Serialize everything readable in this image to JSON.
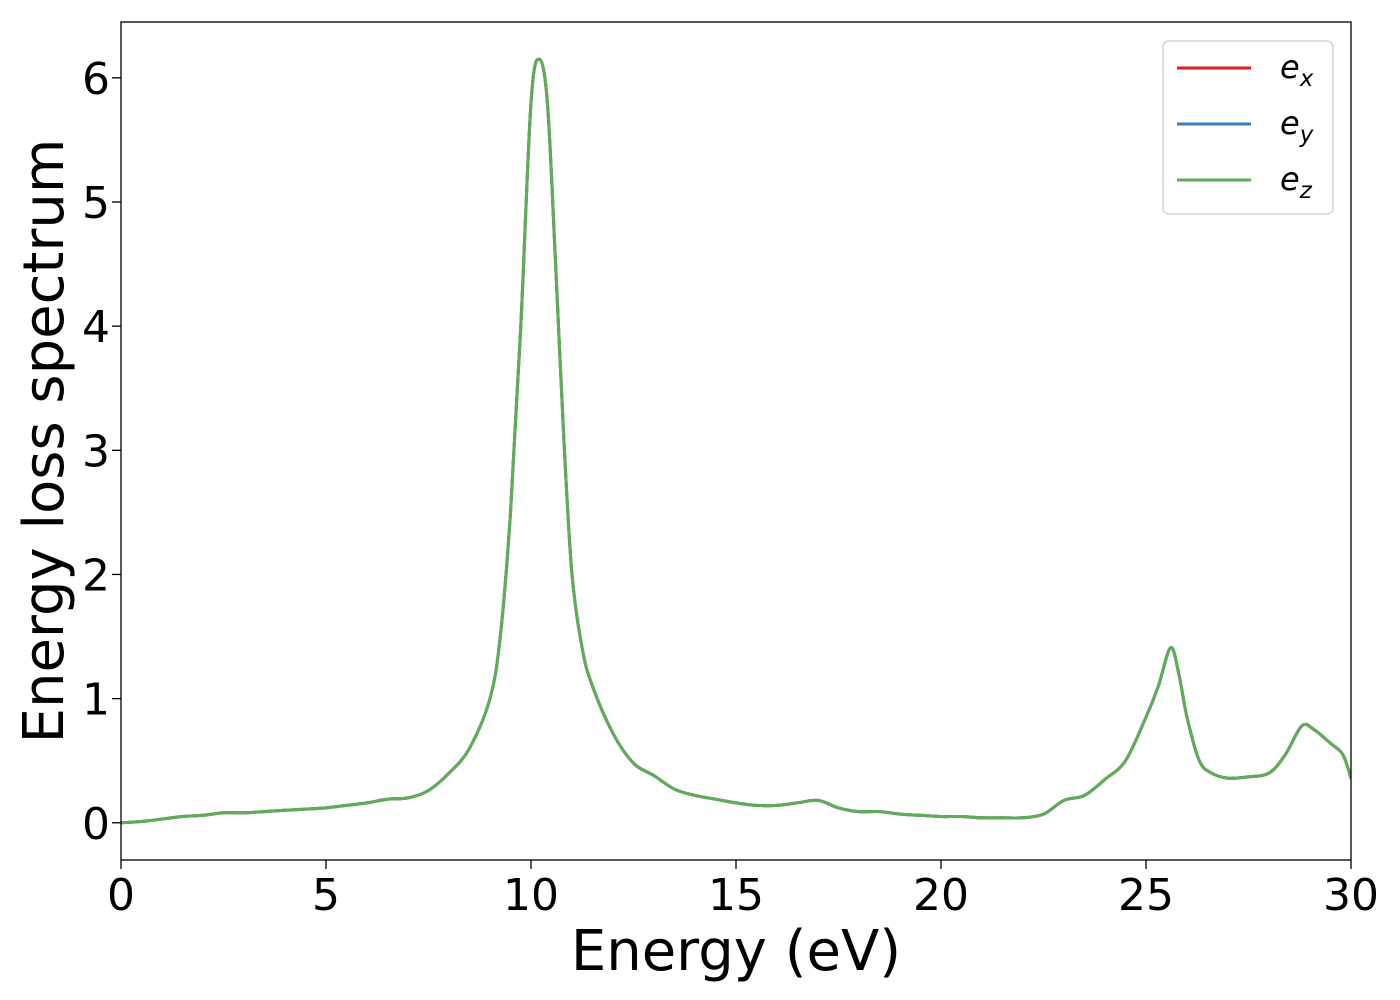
{
  "chart_data": {
    "type": "line",
    "title": "",
    "xlabel": "Energy (eV)",
    "ylabel": "Energy loss spectrum",
    "xlim": [
      0,
      30
    ],
    "ylim": [
      -0.3,
      6.45
    ],
    "x_ticks": [
      "0",
      "5",
      "10",
      "15",
      "20",
      "25",
      "30"
    ],
    "y_ticks": [
      "0",
      "1",
      "2",
      "3",
      "4",
      "5",
      "6"
    ],
    "grid": false,
    "legend_position": "top-right",
    "x": [
      0,
      0.5,
      1,
      1.5,
      2,
      2.5,
      3,
      3.5,
      4,
      4.5,
      5,
      5.5,
      6,
      6.5,
      7,
      7.5,
      8,
      8.5,
      9,
      9.25,
      9.5,
      9.75,
      10,
      10.2,
      10.4,
      10.6,
      10.8,
      11,
      11.25,
      11.5,
      12,
      12.5,
      13,
      13.5,
      14,
      14.5,
      15,
      15.5,
      16,
      16.5,
      17,
      17.5,
      18,
      18.5,
      19,
      19.5,
      20,
      20.5,
      21,
      21.5,
      22,
      22.5,
      23,
      23.5,
      24,
      24.5,
      25,
      25.3,
      25.6,
      25.8,
      26,
      26.3,
      26.6,
      27,
      27.5,
      28,
      28.4,
      28.8,
      29.1,
      29.5,
      29.8,
      30
    ],
    "series": [
      {
        "name": "e_x",
        "label_main": "e",
        "label_sub": "x",
        "color": "#e41a1c",
        "values": [
          0.0,
          0.01,
          0.03,
          0.05,
          0.06,
          0.08,
          0.08,
          0.09,
          0.1,
          0.11,
          0.12,
          0.14,
          0.16,
          0.19,
          0.2,
          0.26,
          0.4,
          0.6,
          1.0,
          1.5,
          2.5,
          4.0,
          5.8,
          6.15,
          5.8,
          4.5,
          3.1,
          2.0,
          1.4,
          1.1,
          0.72,
          0.48,
          0.38,
          0.27,
          0.22,
          0.19,
          0.16,
          0.14,
          0.14,
          0.16,
          0.18,
          0.12,
          0.09,
          0.09,
          0.07,
          0.06,
          0.05,
          0.05,
          0.04,
          0.04,
          0.04,
          0.07,
          0.18,
          0.22,
          0.35,
          0.5,
          0.85,
          1.1,
          1.41,
          1.2,
          0.85,
          0.5,
          0.4,
          0.36,
          0.37,
          0.4,
          0.55,
          0.78,
          0.75,
          0.64,
          0.55,
          0.36
        ]
      },
      {
        "name": "e_y",
        "label_main": "e",
        "label_sub": "y",
        "color": "#377eb8",
        "values": [
          0.0,
          0.01,
          0.03,
          0.05,
          0.06,
          0.08,
          0.08,
          0.09,
          0.1,
          0.11,
          0.12,
          0.14,
          0.16,
          0.19,
          0.2,
          0.26,
          0.4,
          0.6,
          1.0,
          1.5,
          2.5,
          4.0,
          5.8,
          6.15,
          5.8,
          4.5,
          3.1,
          2.0,
          1.4,
          1.1,
          0.72,
          0.48,
          0.38,
          0.27,
          0.22,
          0.19,
          0.16,
          0.14,
          0.14,
          0.16,
          0.18,
          0.12,
          0.09,
          0.09,
          0.07,
          0.06,
          0.05,
          0.05,
          0.04,
          0.04,
          0.04,
          0.07,
          0.18,
          0.22,
          0.35,
          0.5,
          0.85,
          1.1,
          1.41,
          1.2,
          0.85,
          0.5,
          0.4,
          0.36,
          0.37,
          0.4,
          0.55,
          0.78,
          0.75,
          0.64,
          0.55,
          0.36
        ]
      },
      {
        "name": "e_z",
        "label_main": "e",
        "label_sub": "z",
        "color": "#5fad56",
        "values": [
          0.0,
          0.01,
          0.03,
          0.05,
          0.06,
          0.08,
          0.08,
          0.09,
          0.1,
          0.11,
          0.12,
          0.14,
          0.16,
          0.19,
          0.2,
          0.26,
          0.4,
          0.6,
          1.0,
          1.5,
          2.5,
          4.0,
          5.8,
          6.15,
          5.8,
          4.5,
          3.1,
          2.0,
          1.4,
          1.1,
          0.72,
          0.48,
          0.38,
          0.27,
          0.22,
          0.19,
          0.16,
          0.14,
          0.14,
          0.16,
          0.18,
          0.12,
          0.09,
          0.09,
          0.07,
          0.06,
          0.05,
          0.05,
          0.04,
          0.04,
          0.04,
          0.07,
          0.18,
          0.22,
          0.35,
          0.5,
          0.85,
          1.1,
          1.41,
          1.2,
          0.85,
          0.5,
          0.4,
          0.36,
          0.37,
          0.4,
          0.55,
          0.78,
          0.75,
          0.64,
          0.55,
          0.36
        ]
      }
    ]
  }
}
